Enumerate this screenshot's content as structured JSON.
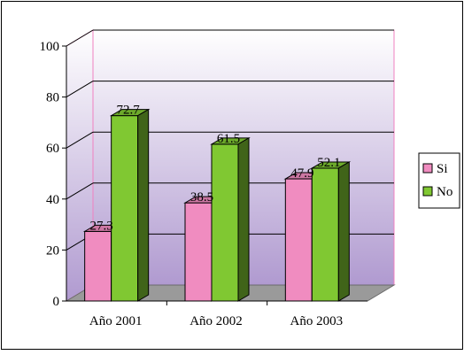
{
  "chart_data": {
    "type": "bar",
    "title": "",
    "xlabel": "",
    "ylabel": "",
    "categories": [
      "Año 2001",
      "Año 2002",
      "Año 2003"
    ],
    "series": [
      {
        "name": "Si",
        "values": [
          27.3,
          38.5,
          47.9
        ],
        "color": "#f08cc0"
      },
      {
        "name": "No",
        "values": [
          72.7,
          61.5,
          52.1
        ],
        "color": "#80c832"
      }
    ],
    "data_labels": [
      [
        "27.3",
        "38.5",
        "47.9"
      ],
      [
        "72.7",
        "61.5",
        "52.1"
      ]
    ],
    "ylim": [
      0,
      100
    ],
    "yticks": [
      0,
      20,
      40,
      60,
      80,
      100
    ],
    "grid": true,
    "legend": "right",
    "chart_style": "3d-clustered-column",
    "colors": {
      "back_wall_top": "#ffffff",
      "back_wall_bottom": "#b09ad0",
      "wall_edge": "#f080c0",
      "floor": "#9a9a9a",
      "outer_border": "#000000"
    }
  }
}
